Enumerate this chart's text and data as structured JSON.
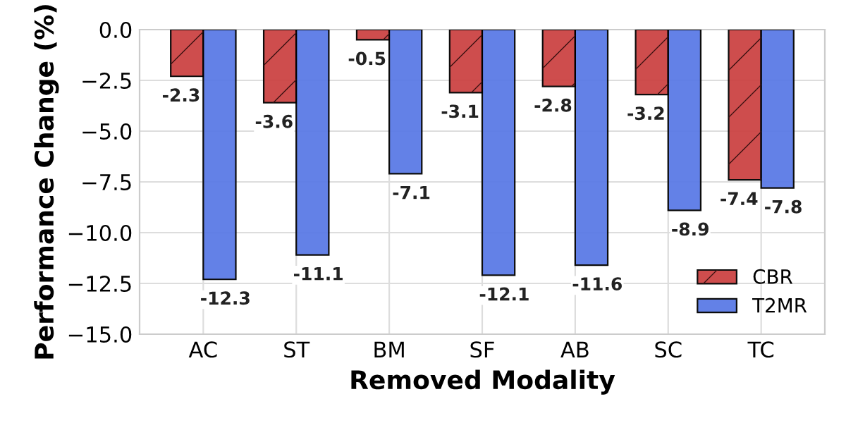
{
  "chart_data": {
    "type": "bar",
    "xlabel": "Removed Modality",
    "ylabel": "Performance Change (%)",
    "categories": [
      "AC",
      "ST",
      "BM",
      "SF",
      "AB",
      "SC",
      "TC"
    ],
    "series": [
      {
        "name": "CBR",
        "color": "#cc4444",
        "values": [
          -2.3,
          -3.6,
          -0.5,
          -3.1,
          -2.8,
          -3.2,
          -7.4
        ]
      },
      {
        "name": "T2MR",
        "color": "#5b7be6",
        "values": [
          -12.3,
          -11.1,
          -7.1,
          -12.1,
          -11.6,
          -8.9,
          -7.8
        ]
      }
    ],
    "ylim": [
      -15,
      0
    ],
    "yticks": [
      {
        "value": -15,
        "label": "−15.0"
      },
      {
        "value": -12.5,
        "label": "−12.5"
      },
      {
        "value": -10,
        "label": "−10.0"
      },
      {
        "value": -7.5,
        "label": "−7.5"
      },
      {
        "value": -5,
        "label": "−5.0"
      },
      {
        "value": -2.5,
        "label": "−2.5"
      },
      {
        "value": 0,
        "label": "0.0"
      }
    ],
    "grid": true,
    "legend": "bottom right",
    "data_labels": true
  }
}
